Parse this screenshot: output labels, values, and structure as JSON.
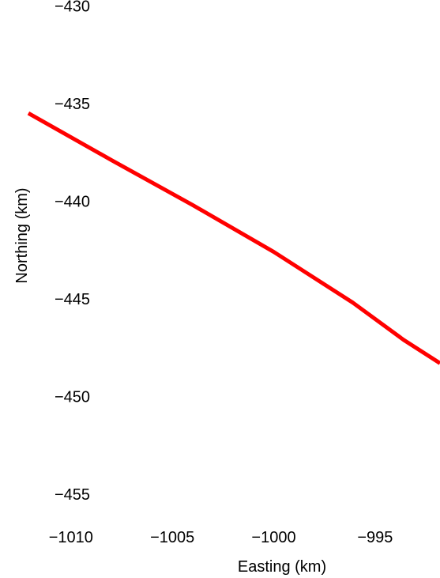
{
  "chart_data": {
    "type": "line",
    "xlabel": "Easting (km)",
    "ylabel": "Northing (km)",
    "xlim": [
      -1013.5,
      -991.8
    ],
    "ylim": [
      -459.3,
      -429.7
    ],
    "x_ticks": [
      -1010,
      -1005,
      -1000,
      -995
    ],
    "x_tick_labels": [
      "−1010",
      "−1005",
      "−1000",
      "−995"
    ],
    "y_ticks": [
      -430,
      -435,
      -440,
      -445,
      -450,
      -455
    ],
    "y_tick_labels": [
      "−430",
      "−435",
      "−440",
      "−445",
      "−450",
      "−455"
    ],
    "grid": false,
    "series": [
      {
        "color": "#ff0000",
        "x": [
          -1012.1,
          -1008.0,
          -1004.0,
          -1000.0,
          -996.1,
          -993.6,
          -991.8
        ],
        "y": [
          -435.5,
          -437.9,
          -440.2,
          -442.6,
          -445.2,
          -447.1,
          -448.3
        ]
      }
    ]
  }
}
